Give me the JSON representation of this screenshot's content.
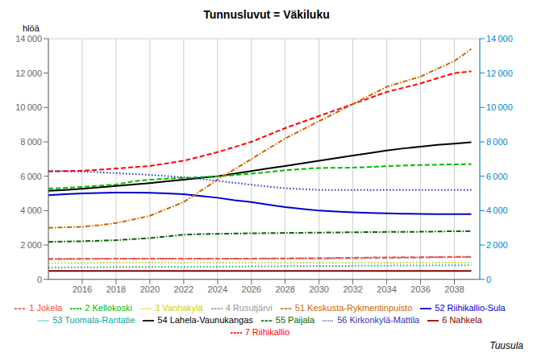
{
  "chart_data": {
    "type": "line",
    "title": "Tunnusluvut = Väkiluku",
    "ylabel": "hlöä",
    "annotations": [
      "Tuusula"
    ],
    "x": [
      2014,
      2015,
      2016,
      2017,
      2018,
      2019,
      2020,
      2021,
      2022,
      2023,
      2024,
      2025,
      2026,
      2027,
      2028,
      2029,
      2030,
      2031,
      2032,
      2033,
      2034,
      2035,
      2036,
      2037,
      2038,
      2039
    ],
    "xlim": [
      2014.0,
      2039.5
    ],
    "xticks": [
      2016,
      2018,
      2020,
      2022,
      2024,
      2026,
      2028,
      2030,
      2032,
      2034,
      2036,
      2038
    ],
    "ylim": [
      0,
      14000
    ],
    "yticks": [
      0,
      {
        "value": 2000,
        "label": "2 000"
      },
      {
        "value": 4000,
        "label": "4 000"
      },
      {
        "value": 6000,
        "label": "6 000"
      },
      {
        "value": 8000,
        "label": "8 000"
      },
      {
        "value": 10000,
        "label": "10 000"
      },
      {
        "value": 12000,
        "label": "12 000"
      },
      {
        "value": 14000,
        "label": "14 000"
      }
    ],
    "y2lim": [
      0,
      14000
    ],
    "y2ticks": [
      0,
      {
        "value": 2000,
        "label": "2 000"
      },
      {
        "value": 4000,
        "label": "4 000"
      },
      {
        "value": 6000,
        "label": "6 000"
      },
      {
        "value": 8000,
        "label": "8 000"
      },
      {
        "value": 10000,
        "label": "10 000"
      },
      {
        "value": 12000,
        "label": "12 000"
      },
      {
        "value": 14000,
        "label": "14 000"
      }
    ],
    "grid": true,
    "legend": "bottom",
    "series": [
      {
        "name": "52 Riihikallio-Sula",
        "color": "#0000CC",
        "line_style": "solid",
        "values": [
          4900,
          4950,
          5000,
          5025,
          5050,
          5050,
          5040,
          5000,
          4950,
          4850,
          4750,
          4600,
          4500,
          4350,
          4200,
          4100,
          4000,
          3950,
          3900,
          3870,
          3840,
          3820,
          3810,
          3800,
          3800,
          3790
        ]
      },
      {
        "name": "7 Riihikallio",
        "color": "#FF0000",
        "line_style": "dashed",
        "values": [
          6280,
          6300,
          6320,
          6380,
          6450,
          6520,
          6600,
          6750,
          6900,
          7150,
          7400,
          7700,
          8000,
          8400,
          8800,
          9150,
          9500,
          9850,
          10200,
          10550,
          10900,
          11150,
          11400,
          11700,
          12000,
          12100
        ]
      },
      {
        "name": "3 Vanhakylä",
        "color": "#CCCC00",
        "line_style": "dotted",
        "values": [
          950,
          955,
          960,
          965,
          968,
          970,
          972,
          973,
          974,
          974,
          975,
          975,
          975,
          975,
          975,
          975,
          975,
          975,
          975,
          975,
          976,
          977,
          978,
          980,
          982,
          984
        ]
      },
      {
        "name": "55 Paijala",
        "color": "#006600",
        "line_style": "dashdot",
        "values": [
          2180,
          2200,
          2220,
          2250,
          2280,
          2340,
          2400,
          2500,
          2600,
          2630,
          2650,
          2665,
          2680,
          2690,
          2700,
          2710,
          2720,
          2730,
          2740,
          2750,
          2760,
          2765,
          2770,
          2785,
          2800,
          2805
        ]
      },
      {
        "name": "54 Lahela-Vaunukangas",
        "color": "#000000",
        "line_style": "solid",
        "values": [
          5150,
          5200,
          5270,
          5350,
          5430,
          5520,
          5600,
          5700,
          5800,
          5900,
          6000,
          6150,
          6300,
          6450,
          6600,
          6750,
          6900,
          7050,
          7200,
          7350,
          7500,
          7620,
          7720,
          7820,
          7900,
          7980
        ]
      },
      {
        "name": "2 Kellokoski",
        "color": "#00BB00",
        "line_style": "dashed",
        "values": [
          5280,
          5320,
          5380,
          5450,
          5520,
          5700,
          5800,
          5860,
          5900,
          5950,
          6000,
          6070,
          6150,
          6240,
          6350,
          6420,
          6480,
          6490,
          6500,
          6540,
          6580,
          6620,
          6650,
          6670,
          6690,
          6700
        ]
      },
      {
        "name": "53 Tuomala-Rantatie",
        "color": "#00AAAA",
        "line_style": "dotted",
        "values": [
          690,
          695,
          700,
          705,
          710,
          715,
          720,
          725,
          730,
          735,
          740,
          748,
          756,
          762,
          768,
          774,
          780,
          785,
          790,
          795,
          800,
          805,
          810,
          815,
          820,
          822
        ]
      },
      {
        "name": "51 Keskusta-Rykmentinpuisto",
        "color": "#CC6600",
        "line_style": "dashdot",
        "values": [
          3000,
          3030,
          3060,
          3150,
          3280,
          3480,
          3700,
          4100,
          4500,
          5150,
          5800,
          6400,
          7000,
          7600,
          8200,
          8700,
          9200,
          9700,
          10200,
          10700,
          11200,
          11500,
          11800,
          12250,
          12700,
          13400
        ]
      },
      {
        "name": "6 Nahkela",
        "color": "#880000",
        "line_style": "solid",
        "values": [
          490,
          490,
          490,
          490,
          490,
          490,
          490,
          490,
          490,
          490,
          490,
          490,
          490,
          490,
          490,
          490,
          490,
          490,
          490,
          490,
          490,
          490,
          490,
          490,
          490,
          490
        ]
      },
      {
        "name": "4 Rusutjärvi",
        "color": "#999999",
        "line_style": "dashed",
        "values": [
          1190,
          1195,
          1200,
          1200,
          1200,
          1200,
          1200,
          1200,
          1200,
          1200,
          1200,
          1200,
          1200,
          1210,
          1215,
          1218,
          1220,
          1225,
          1230,
          1238,
          1246,
          1256,
          1268,
          1282,
          1296,
          1300
        ]
      },
      {
        "name": "56 Kirkonkylä-Mattila",
        "color": "#3333BB",
        "line_style": "dotted",
        "values": [
          6300,
          6290,
          6270,
          6230,
          6180,
          6130,
          6080,
          6010,
          5940,
          5840,
          5730,
          5620,
          5500,
          5400,
          5300,
          5250,
          5200,
          5200,
          5200,
          5200,
          5200,
          5200,
          5200,
          5200,
          5200,
          5200
        ]
      },
      {
        "name": "1 Jokela",
        "color": "#FF4444",
        "line_style": "dashdot",
        "values": [
          1180,
          1188,
          1195,
          1198,
          1200,
          1200,
          1200,
          1200,
          1200,
          1200,
          1200,
          1205,
          1210,
          1215,
          1220,
          1228,
          1236,
          1248,
          1260,
          1270,
          1278,
          1285,
          1292,
          1300,
          1308,
          1316
        ]
      }
    ]
  }
}
